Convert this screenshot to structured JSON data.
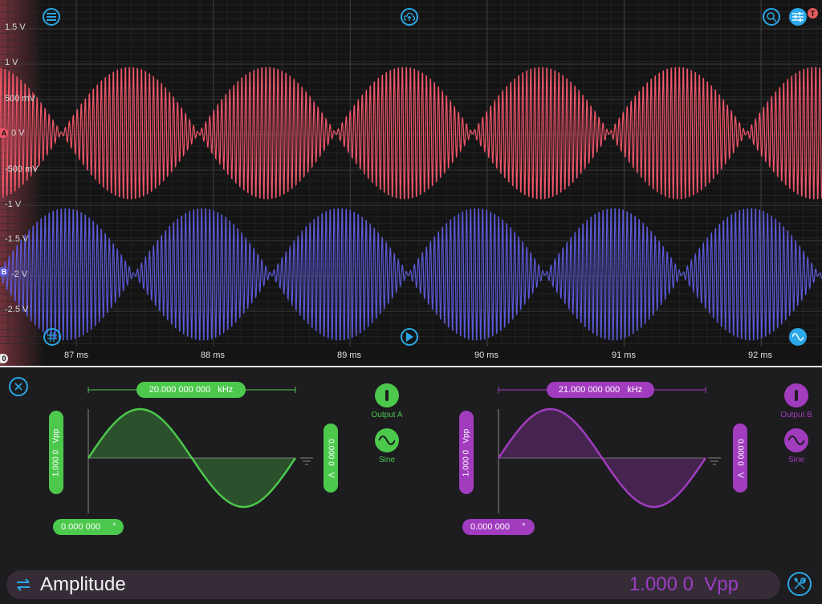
{
  "colors": {
    "channel_a": "#f0566a",
    "channel_b": "#5b5ad8",
    "green": "#4cc94c",
    "purple": "#a13cbf",
    "accent": "#2aa8e8",
    "badge": "#e35a5a",
    "readout": "#9b3ec4"
  },
  "scope": {
    "voltage_labels": [
      "1.5 V",
      "1 V",
      "500 mV",
      "0 V",
      "-500 mV",
      "-1 V",
      "-1.5 V",
      "-2 V",
      "-2.5 V"
    ],
    "time_labels": [
      "87 ms",
      "88 ms",
      "89 ms",
      "90 ms",
      "91 ms",
      "92 ms"
    ],
    "marker_a": "A",
    "marker_b": "B",
    "trigger_marker": "0",
    "trigger_badge": "T",
    "icons": {
      "menu": "menu-icon",
      "cloud": "cloud-upload-icon",
      "search": "search-icon",
      "settings": "sliders-icon",
      "grid": "grid-icon",
      "play": "play-icon",
      "wave": "sine-wave-icon"
    }
  },
  "generator": {
    "close_icon": "close-icon",
    "channel_a": {
      "frequency": "20.000 000 000",
      "frequency_unit": "kHz",
      "amplitude": "1.000 0",
      "amplitude_unit": "Vpp",
      "offset": "0.000 0",
      "offset_unit": "V",
      "phase": "0.000 000",
      "phase_unit": "°",
      "output_label": "Output A",
      "waveform_label": "Sine"
    },
    "channel_b": {
      "frequency": "21.000 000 000",
      "frequency_unit": "kHz",
      "amplitude": "1.000 0",
      "amplitude_unit": "Vpp",
      "offset": "0.000 0",
      "offset_unit": "V",
      "phase": "0.000 000",
      "phase_unit": "°",
      "output_label": "Output B",
      "waveform_label": "Sine"
    }
  },
  "bottom_bar": {
    "swap_icon": "swap-icon",
    "parameter": "Amplitude",
    "value": "1.000 0",
    "unit": "Vpp",
    "tools_icon": "tools-icon"
  }
}
